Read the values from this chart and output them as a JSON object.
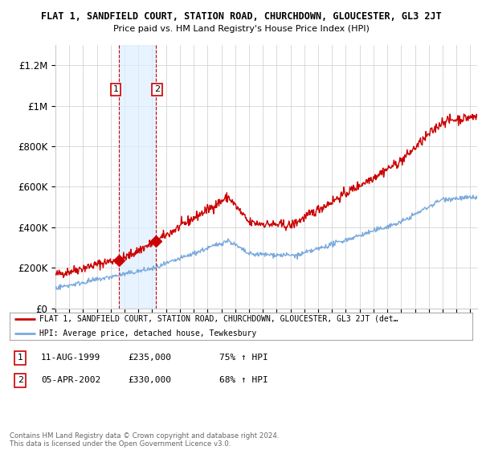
{
  "title": "FLAT 1, SANDFIELD COURT, STATION ROAD, CHURCHDOWN, GLOUCESTER, GL3 2JT",
  "subtitle": "Price paid vs. HM Land Registry's House Price Index (HPI)",
  "ylim": [
    0,
    1300000
  ],
  "yticks": [
    0,
    200000,
    400000,
    600000,
    800000,
    1000000,
    1200000
  ],
  "ytick_labels": [
    "£0",
    "£200K",
    "£400K",
    "£600K",
    "£800K",
    "£1M",
    "£1.2M"
  ],
  "sale1_date_num": 1999.61,
  "sale1_price": 235000,
  "sale1_label": "1",
  "sale1_date_str": "11-AUG-1999",
  "sale1_price_str": "£235,000",
  "sale1_hpi_str": "75% ↑ HPI",
  "sale2_date_num": 2002.26,
  "sale2_price": 330000,
  "sale2_label": "2",
  "sale2_date_str": "05-APR-2002",
  "sale2_price_str": "£330,000",
  "sale2_hpi_str": "68% ↑ HPI",
  "red_line_color": "#cc0000",
  "blue_line_color": "#7aaadd",
  "shade_color": "#ddeeff",
  "shade_alpha": 0.7,
  "legend_line1": "FLAT 1, SANDFIELD COURT, STATION ROAD, CHURCHDOWN, GLOUCESTER, GL3 2JT (det…",
  "legend_line2": "HPI: Average price, detached house, Tewkesbury",
  "footnote": "Contains HM Land Registry data © Crown copyright and database right 2024.\nThis data is licensed under the Open Government Licence v3.0.",
  "background_color": "#ffffff"
}
